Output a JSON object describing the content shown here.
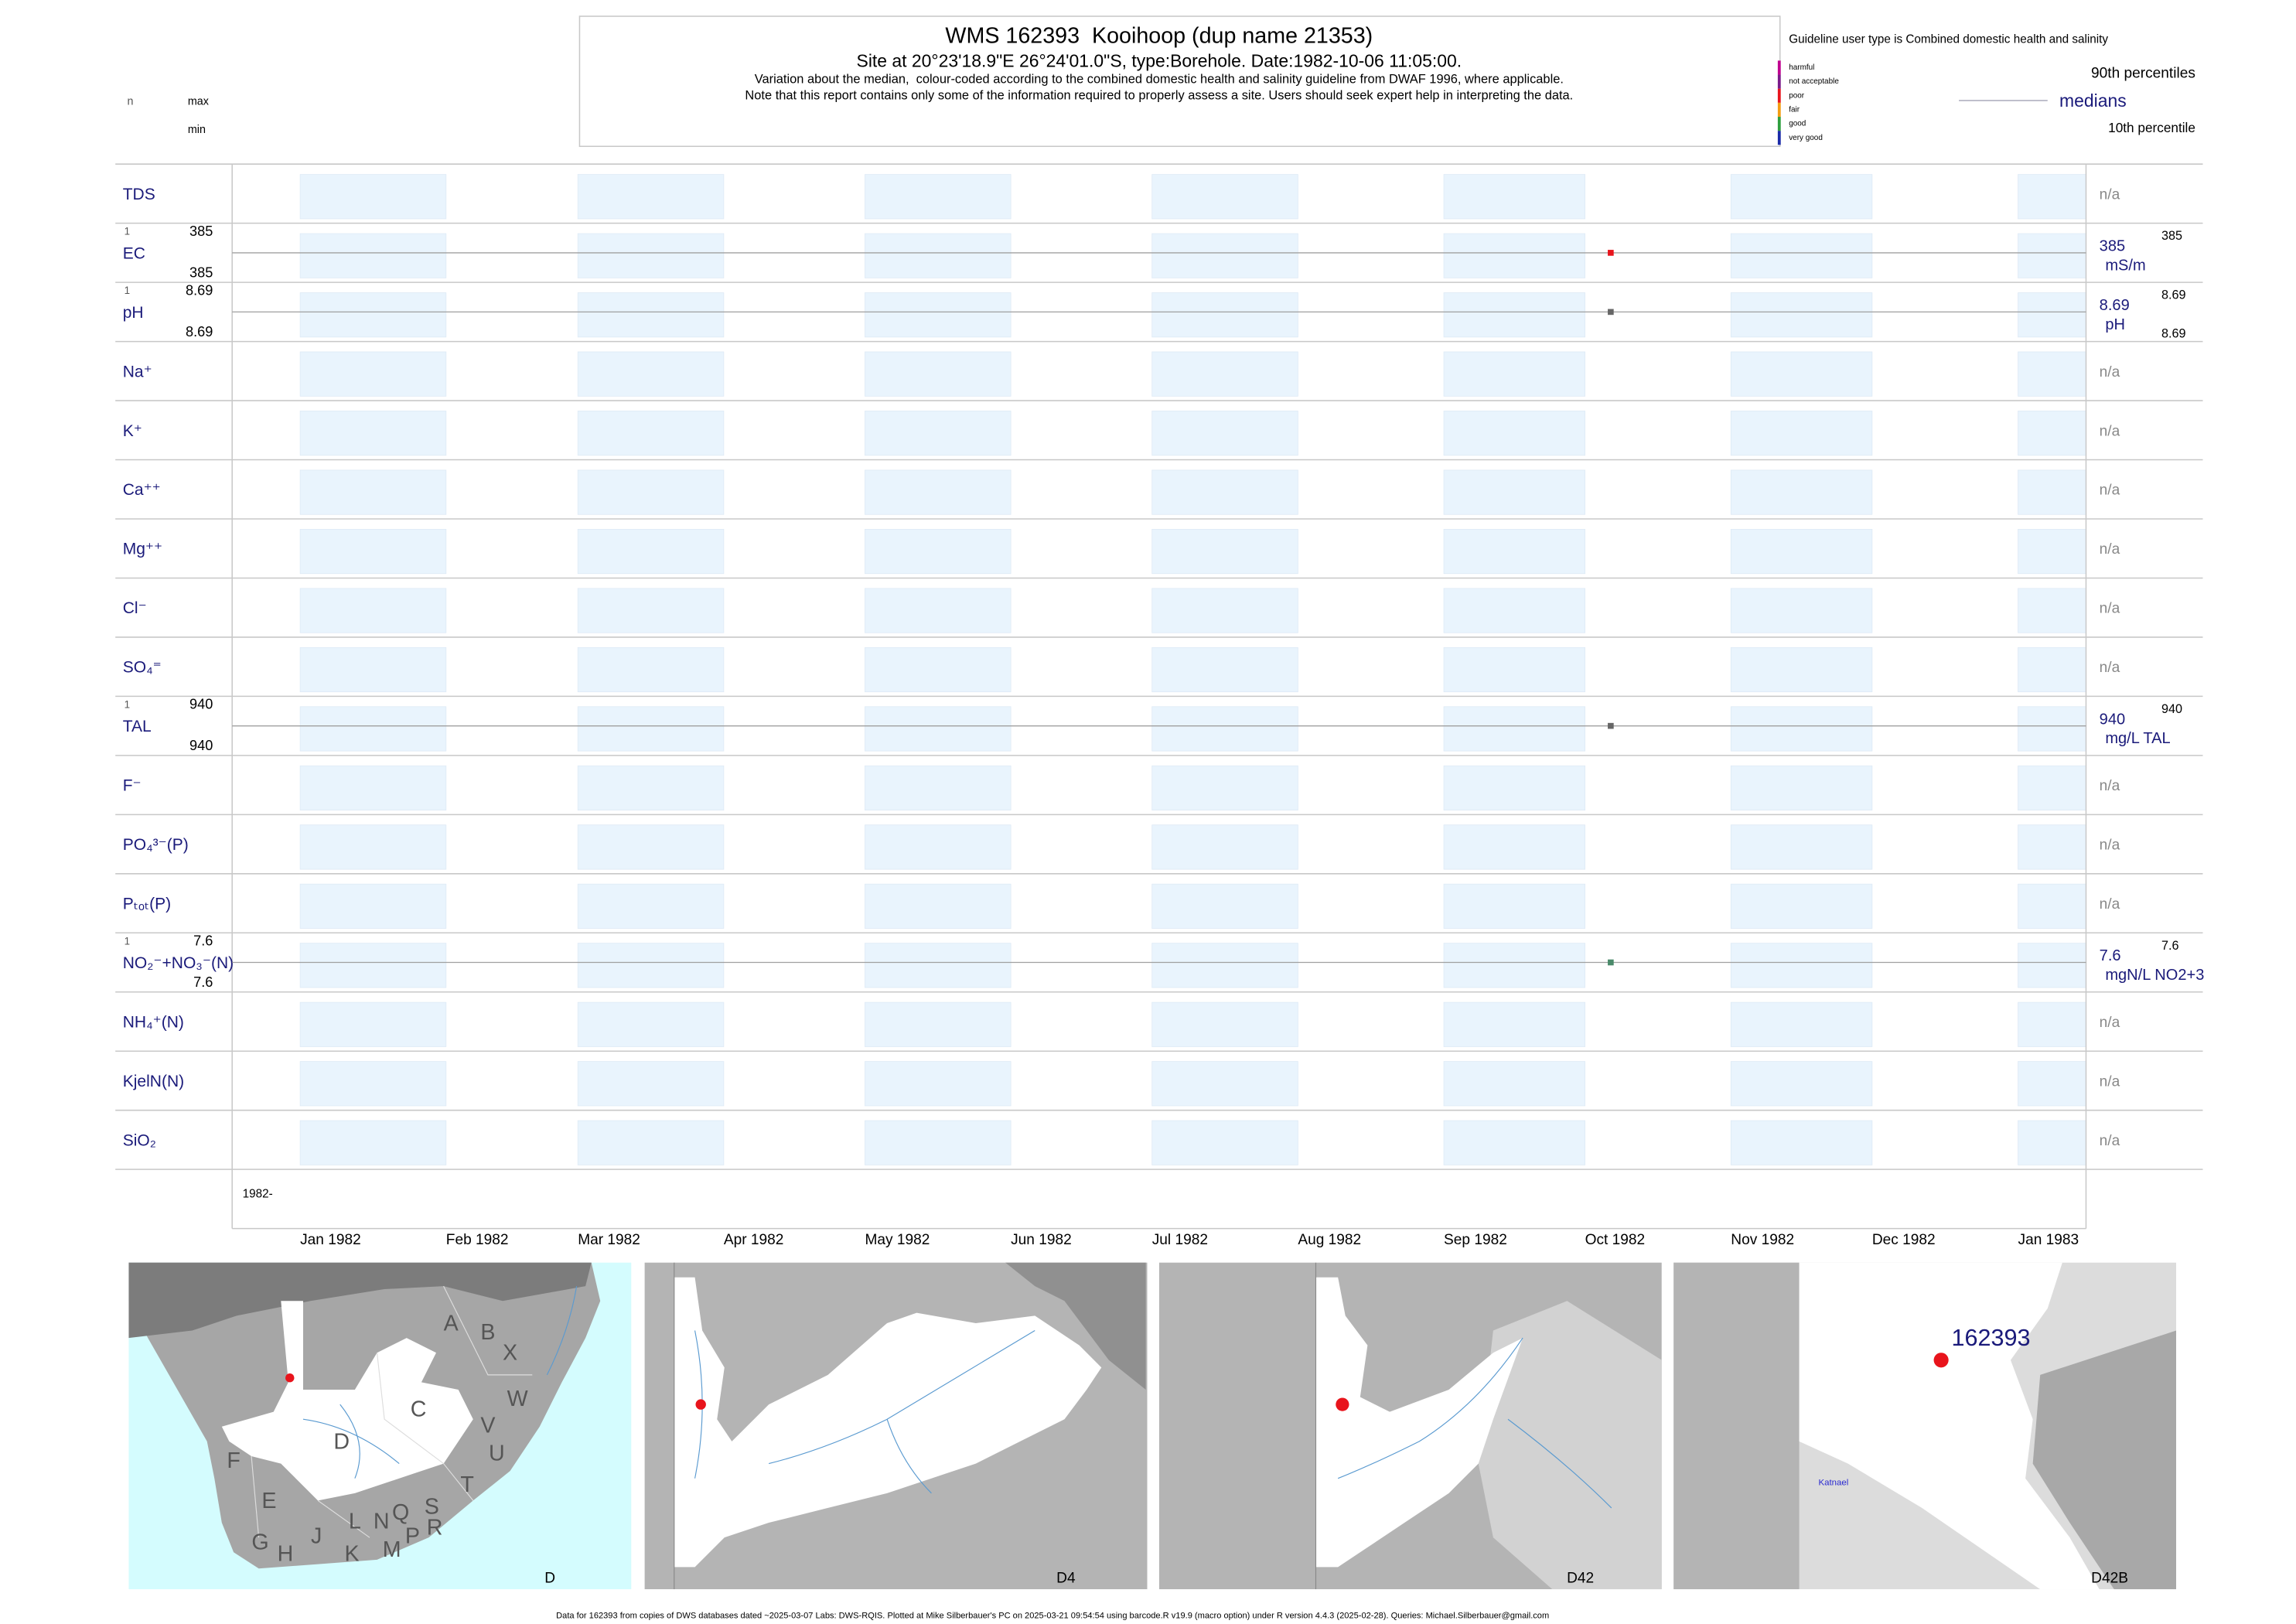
{
  "header": {
    "title": "WMS 162393  Kooihoop (dup name 21353)",
    "site": "Site at 20°23'18.9\"E 26°24'01.0\"S, type:Borehole. Date:1982-10-06 11:05:00.",
    "note1": "Variation about the median,  colour-coded according to the combined domestic health and salinity guideline from DWAF 1996, where applicable.",
    "note2": "Note that this report contains only some of the information required to properly assess a site. Users should seek expert help in interpreting the data."
  },
  "key": {
    "n": "n",
    "max": "max",
    "min": "min"
  },
  "legend": {
    "title": "Guideline user type is Combined domestic health and salinity",
    "classes": [
      {
        "name": "harmful",
        "color": "#c0008f"
      },
      {
        "name": "not acceptable",
        "color": "#7a1a8a"
      },
      {
        "name": "poor",
        "color": "#e8141c"
      },
      {
        "name": "fair",
        "color": "#f39c12"
      },
      {
        "name": "good",
        "color": "#2e9e3e"
      },
      {
        "name": "very good",
        "color": "#1a2aa8"
      }
    ],
    "upper": "90th percentiles",
    "middle": "medians",
    "lower": "10th percentile"
  },
  "chart_data": {
    "type": "strip",
    "sample_date": "1982-10-06 11:05:00",
    "year_label": "1982-",
    "na": "n/a",
    "xticks": [
      "Jan 1982",
      "Feb 1982",
      "Mar 1982",
      "Apr 1982",
      "May 1982",
      "Jun 1982",
      "Jul 1982",
      "Aug 1982",
      "Sep 1982",
      "Oct 1982",
      "Nov 1982",
      "Dec 1982",
      "Jan 1983"
    ],
    "rows": [
      {
        "label": "TDS"
      },
      {
        "label": "EC",
        "n": 1,
        "max": 385,
        "min": 385,
        "median": 385,
        "unit": "mS/m",
        "p90": 385,
        "values": [
          385
        ],
        "color": "#e8141c"
      },
      {
        "label": "pH",
        "n": 1,
        "max": 8.69,
        "min": 8.69,
        "median": 8.69,
        "unit": "pH",
        "p90": 8.69,
        "p10": 8.69,
        "values": [
          8.69
        ],
        "color": "#666666"
      },
      {
        "label": "Na⁺"
      },
      {
        "label": "K⁺"
      },
      {
        "label": "Ca⁺⁺"
      },
      {
        "label": "Mg⁺⁺"
      },
      {
        "label": "Cl⁻"
      },
      {
        "label": "SO₄⁼"
      },
      {
        "label": "TAL",
        "n": 1,
        "max": 940,
        "min": 940,
        "median": 940,
        "unit": "mg/L TAL",
        "p90": 940,
        "values": [
          940
        ],
        "color": "#666666"
      },
      {
        "label": "F⁻"
      },
      {
        "label": "PO₄³⁻(P)"
      },
      {
        "label": "Pₜₒₜ(P)"
      },
      {
        "label": "NO₂⁻+NO₃⁻(N)",
        "n": 1,
        "max": 7.6,
        "min": 7.6,
        "median": 7.6,
        "unit": "mgN/L NO2+3",
        "p90": 7.6,
        "values": [
          7.6
        ],
        "color": "#4a8a6a"
      },
      {
        "label": "NH₄⁺(N)"
      },
      {
        "label": "KjelN(N)"
      },
      {
        "label": "SiO₂"
      }
    ]
  },
  "maps": [
    {
      "label": "D",
      "regions": [
        "A",
        "B",
        "X",
        "C",
        "W",
        "V",
        "U",
        "D",
        "F",
        "E",
        "T",
        "S",
        "Q",
        "R",
        "N",
        "L",
        "P",
        "M",
        "K",
        "J",
        "H",
        "G"
      ]
    },
    {
      "label": "D4"
    },
    {
      "label": "D42"
    },
    {
      "label": "D42B",
      "site": "162393",
      "place": "Katnael"
    }
  ],
  "footer": "Data for 162393 from copies of DWS databases dated ~2025-03-07 Labs: DWS-RQIS. Plotted at Mike Silberbauer's PC on 2025-03-21 09:54:54 using barcode.R v19.9 (macro option) under R version 4.4.3 (2025-02-28). Queries: Michael.Silberbauer@gmail.com"
}
